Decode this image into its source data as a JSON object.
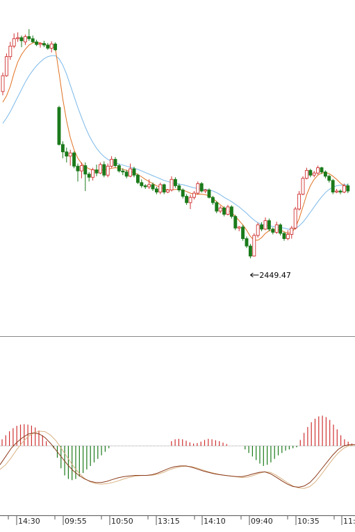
{
  "chart_data": [
    {
      "type": "candlestick",
      "title": "",
      "annotations": [
        {
          "label": "2449.47",
          "value": 2449.47
        }
      ],
      "colors": {
        "up": "#d03030",
        "down": "#1a7a1a",
        "ma_fast": "#e07020",
        "ma_slow": "#7ab8e8"
      },
      "series": [
        {
          "kind": "ohlc",
          "values": [
            [
              2481.0,
              2484.6,
              2480.3,
              2484.0
            ],
            [
              2484.0,
              2488.2,
              2483.8,
              2487.6
            ],
            [
              2487.6,
              2490.4,
              2487.0,
              2489.6
            ],
            [
              2489.6,
              2492.0,
              2489.2,
              2491.0
            ],
            [
              2491.0,
              2492.2,
              2490.4,
              2491.2
            ],
            [
              2491.2,
              2491.6,
              2489.4,
              2490.6
            ],
            [
              2490.4,
              2491.8,
              2489.8,
              2491.4
            ],
            [
              2491.4,
              2492.8,
              2490.6,
              2491.0
            ],
            [
              2491.0,
              2491.6,
              2490.2,
              2490.4
            ],
            [
              2490.4,
              2490.8,
              2489.6,
              2489.9
            ],
            [
              2489.9,
              2490.3,
              2489.3,
              2490.1
            ],
            [
              2490.1,
              2490.6,
              2489.4,
              2489.8
            ],
            [
              2489.8,
              2490.2,
              2488.9,
              2489.2
            ],
            [
              2489.2,
              2490.5,
              2488.4,
              2490.0
            ],
            [
              2490.0,
              2490.3,
              2488.7,
              2488.9
            ],
            [
              2478.0,
              2478.3,
              2470.8,
              2471.0
            ],
            [
              2471.0,
              2471.6,
              2468.4,
              2469.6
            ],
            [
              2469.6,
              2470.4,
              2467.6,
              2468.8
            ],
            [
              2468.8,
              2470.0,
              2467.0,
              2469.4
            ],
            [
              2469.4,
              2469.7,
              2466.5,
              2466.9
            ],
            [
              2466.9,
              2467.4,
              2464.0,
              2466.0
            ],
            [
              2466.0,
              2467.6,
              2464.6,
              2467.0
            ],
            [
              2467.0,
              2467.6,
              2462.2,
              2465.4
            ],
            [
              2465.4,
              2465.8,
              2464.0,
              2464.8
            ],
            [
              2464.8,
              2466.6,
              2464.2,
              2466.2
            ],
            [
              2466.2,
              2467.2,
              2465.0,
              2465.6
            ],
            [
              2465.6,
              2467.6,
              2465.4,
              2467.2
            ],
            [
              2467.2,
              2467.8,
              2464.8,
              2465.2
            ],
            [
              2465.2,
              2467.4,
              2464.8,
              2466.9
            ],
            [
              2466.9,
              2468.8,
              2466.6,
              2468.2
            ],
            [
              2468.2,
              2468.6,
              2466.7,
              2467.0
            ],
            [
              2467.0,
              2467.3,
              2465.7,
              2466.0
            ],
            [
              2466.0,
              2466.5,
              2465.2,
              2465.8
            ],
            [
              2465.8,
              2466.2,
              2464.6,
              2465.0
            ],
            [
              2465.0,
              2467.4,
              2464.8,
              2466.4
            ],
            [
              2466.4,
              2466.8,
              2464.8,
              2465.2
            ],
            [
              2465.2,
              2465.5,
              2463.5,
              2463.8
            ],
            [
              2463.8,
              2464.4,
              2462.8,
              2463.2
            ],
            [
              2463.2,
              2463.5,
              2462.6,
              2463.0
            ],
            [
              2463.0,
              2464.4,
              2462.6,
              2463.4
            ],
            [
              2463.4,
              2463.8,
              2462.2,
              2462.6
            ],
            [
              2462.6,
              2463.0,
              2461.6,
              2462.0
            ],
            [
              2462.0,
              2463.8,
              2461.6,
              2463.4
            ],
            [
              2463.4,
              2463.6,
              2461.6,
              2462.0
            ],
            [
              2462.0,
              2462.6,
              2461.8,
              2462.4
            ],
            [
              2462.4,
              2465.0,
              2462.1,
              2464.4
            ],
            [
              2464.4,
              2464.8,
              2462.8,
              2463.2
            ],
            [
              2463.2,
              2463.6,
              2462.0,
              2462.4
            ],
            [
              2462.4,
              2462.7,
              2460.8,
              2461.2
            ],
            [
              2461.2,
              2461.6,
              2459.6,
              2460.0
            ],
            [
              2460.0,
              2461.5,
              2458.8,
              2461.0
            ],
            [
              2461.0,
              2462.2,
              2460.6,
              2461.8
            ],
            [
              2461.8,
              2464.0,
              2461.5,
              2463.6
            ],
            [
              2463.6,
              2463.9,
              2461.9,
              2462.2
            ],
            [
              2462.2,
              2462.6,
              2461.8,
              2462.4
            ],
            [
              2462.4,
              2462.7,
              2460.8,
              2461.0
            ],
            [
              2461.0,
              2461.3,
              2459.6,
              2460.0
            ],
            [
              2460.0,
              2460.3,
              2458.0,
              2458.4
            ],
            [
              2458.4,
              2459.4,
              2458.0,
              2459.0
            ],
            [
              2459.0,
              2459.3,
              2457.4,
              2457.8
            ],
            [
              2457.8,
              2459.6,
              2457.6,
              2459.2
            ],
            [
              2459.2,
              2459.5,
              2457.0,
              2457.4
            ],
            [
              2457.4,
              2457.7,
              2454.8,
              2455.2
            ],
            [
              2455.2,
              2455.6,
              2454.6,
              2455.4
            ],
            [
              2455.4,
              2455.8,
              2452.8,
              2453.2
            ],
            [
              2453.2,
              2453.6,
              2451.4,
              2451.8
            ],
            [
              2451.8,
              2452.2,
              2449.47,
              2449.9
            ],
            [
              2449.9,
              2454.2,
              2449.8,
              2453.8
            ],
            [
              2453.8,
              2456.2,
              2453.4,
              2455.8
            ],
            [
              2455.8,
              2456.3,
              2454.6,
              2455.0
            ],
            [
              2455.0,
              2457.2,
              2454.8,
              2456.6
            ],
            [
              2456.6,
              2457.0,
              2454.6,
              2455.0
            ],
            [
              2455.0,
              2455.3,
              2454.0,
              2454.4
            ],
            [
              2454.4,
              2456.4,
              2454.1,
              2455.8
            ],
            [
              2455.8,
              2456.1,
              2453.8,
              2454.2
            ],
            [
              2454.2,
              2454.5,
              2452.8,
              2453.2
            ],
            [
              2453.2,
              2454.8,
              2452.9,
              2454.0
            ],
            [
              2454.0,
              2455.6,
              2453.2,
              2455.2
            ],
            [
              2455.2,
              2459.2,
              2454.9,
              2458.8
            ],
            [
              2458.8,
              2462.2,
              2458.5,
              2461.6
            ],
            [
              2461.6,
              2465.0,
              2461.4,
              2464.6
            ],
            [
              2464.6,
              2466.6,
              2464.4,
              2466.1
            ],
            [
              2466.1,
              2466.4,
              2464.8,
              2465.2
            ],
            [
              2465.2,
              2466.0,
              2464.8,
              2465.6
            ],
            [
              2465.6,
              2467.0,
              2465.3,
              2466.6
            ],
            [
              2466.6,
              2466.8,
              2465.4,
              2465.8
            ],
            [
              2465.8,
              2466.1,
              2464.6,
              2465.0
            ],
            [
              2465.0,
              2465.3,
              2463.8,
              2464.2
            ],
            [
              2464.2,
              2464.5,
              2461.6,
              2462.0
            ],
            [
              2462.0,
              2462.6,
              2461.8,
              2462.2
            ],
            [
              2462.2,
              2462.5,
              2461.6,
              2462.0
            ],
            [
              2462.0,
              2463.6,
              2461.8,
              2463.2
            ],
            [
              2463.2,
              2463.6,
              2461.8,
              2462.2
            ]
          ]
        },
        {
          "kind": "ma",
          "name": "",
          "values": [
            2479.0,
            2480.2,
            2482.0,
            2484.5,
            2486.6,
            2488.0,
            2489.0,
            2489.8,
            2490.2,
            2490.3,
            2490.2,
            2490.0,
            2489.7,
            2489.5,
            2489.2,
            2484.5,
            2479.6,
            2475.5,
            2472.3,
            2470.0,
            2468.4,
            2467.4,
            2466.8,
            2466.4,
            2466.2,
            2466.1,
            2466.2,
            2466.2,
            2466.3,
            2466.5,
            2466.6,
            2466.5,
            2466.3,
            2466.1,
            2465.9,
            2465.7,
            2465.3,
            2464.9,
            2464.4,
            2464.0,
            2463.6,
            2463.2,
            2462.9,
            2462.6,
            2462.4,
            2462.4,
            2462.5,
            2462.5,
            2462.4,
            2462.1,
            2461.8,
            2461.6,
            2461.6,
            2461.6,
            2461.5,
            2461.3,
            2460.8,
            2460.2,
            2459.6,
            2459.0,
            2458.6,
            2458.1,
            2457.4,
            2456.6,
            2455.8,
            2454.8,
            2453.6,
            2452.9,
            2452.9,
            2453.4,
            2454.2,
            2454.7,
            2454.8,
            2454.9,
            2454.8,
            2454.5,
            2454.2,
            2454.3,
            2455.3,
            2457.0,
            2459.2,
            2461.5,
            2463.2,
            2464.4,
            2465.2,
            2465.6,
            2465.7,
            2465.5,
            2465.0,
            2464.4,
            2463.7,
            2463.2,
            2462.9
          ]
        },
        {
          "kind": "ma",
          "name": "",
          "values": [
            2475.0,
            2476.0,
            2477.2,
            2478.6,
            2480.0,
            2481.4,
            2482.8,
            2484.0,
            2485.0,
            2485.9,
            2486.6,
            2487.2,
            2487.6,
            2487.8,
            2487.8,
            2487.2,
            2486.0,
            2484.3,
            2482.2,
            2480.1,
            2478.0,
            2476.1,
            2474.3,
            2472.7,
            2471.4,
            2470.3,
            2469.4,
            2468.7,
            2468.2,
            2467.8,
            2467.5,
            2467.3,
            2467.1,
            2466.9,
            2466.7,
            2466.5,
            2466.3,
            2466.0,
            2465.7,
            2465.4,
            2465.1,
            2464.8,
            2464.5,
            2464.2,
            2464.0,
            2463.8,
            2463.6,
            2463.5,
            2463.4,
            2463.2,
            2463.0,
            2462.8,
            2462.7,
            2462.6,
            2462.5,
            2462.4,
            2462.2,
            2461.9,
            2461.5,
            2461.0,
            2460.6,
            2460.2,
            2459.7,
            2459.2,
            2458.6,
            2458.0,
            2457.3,
            2456.7,
            2456.2,
            2455.9,
            2455.7,
            2455.6,
            2455.5,
            2455.4,
            2455.3,
            2455.2,
            2455.0,
            2454.9,
            2455.1,
            2455.6,
            2456.3,
            2457.2,
            2458.2,
            2459.2,
            2460.2,
            2461.1,
            2461.9,
            2462.5,
            2462.9,
            2463.2,
            2463.3,
            2463.4,
            2463.4
          ]
        }
      ],
      "x_ticks": [
        "14:30",
        "09:55",
        "10:50",
        "13:15",
        "14:10",
        "09:40",
        "10:35",
        "11:"
      ]
    },
    {
      "type": "bar",
      "title": "",
      "colors": {
        "positive": "#d03030",
        "negative": "#1a7a1a",
        "dif": "#8b3a1a",
        "dea": "#d8b080"
      },
      "series": [
        {
          "kind": "histogram",
          "values": [
            0.28,
            0.45,
            0.62,
            0.75,
            0.85,
            0.9,
            0.92,
            0.9,
            0.86,
            0.78,
            0.65,
            0.45,
            0.2,
            0,
            -0.1,
            -0.5,
            -0.95,
            -1.25,
            -1.4,
            -1.45,
            -1.4,
            -1.3,
            -1.15,
            -1.0,
            -0.85,
            -0.7,
            -0.55,
            -0.4,
            -0.25,
            -0.1,
            0,
            0,
            0,
            0,
            0,
            0,
            0,
            0,
            0,
            0,
            0,
            0,
            0,
            0,
            0,
            0,
            0.2,
            0.28,
            0.3,
            0.28,
            0.22,
            0.15,
            0.1,
            0.12,
            0.18,
            0.25,
            0.3,
            0.28,
            0.24,
            0.2,
            0.14,
            0.08,
            0,
            0,
            0,
            0,
            -0.15,
            -0.3,
            -0.45,
            -0.6,
            -0.75,
            -0.85,
            -0.8,
            -0.7,
            -0.55,
            -0.4,
            -0.3,
            -0.2,
            -0.15,
            -0.1,
            -0.06,
            0.25,
            0.55,
            0.8,
            1.0,
            1.15,
            1.25,
            1.28,
            1.22,
            1.1,
            0.9,
            0.7,
            0.45,
            0.28,
            0.18,
            0.1
          ]
        },
        {
          "kind": "line",
          "name": "",
          "values": [
            -0.8,
            -0.45,
            -0.1,
            0.15,
            0.35,
            0.5,
            0.55,
            0.5,
            0.35,
            0.1,
            -0.2,
            -0.5,
            -0.8,
            -1.05,
            -1.25,
            -1.4,
            -1.5,
            -1.55,
            -1.55,
            -1.5,
            -1.42,
            -1.35,
            -1.3,
            -1.27,
            -1.25,
            -1.25,
            -1.25,
            -1.22,
            -1.15,
            -1.05,
            -0.95,
            -0.88,
            -0.85,
            -0.85,
            -0.9,
            -0.98,
            -1.06,
            -1.12,
            -1.18,
            -1.22,
            -1.25,
            -1.28,
            -1.3,
            -1.3,
            -1.25,
            -1.18,
            -1.12,
            -1.1,
            -1.18,
            -1.32,
            -1.48,
            -1.62,
            -1.72,
            -1.75,
            -1.7,
            -1.55,
            -1.3,
            -1.0,
            -0.7,
            -0.4,
            -0.15,
            0.0,
            0.05,
            0.05
          ]
        },
        {
          "kind": "line",
          "name": "",
          "values": [
            -1.0,
            -0.8,
            -0.5,
            -0.15,
            0.15,
            0.4,
            0.55,
            0.62,
            0.6,
            0.45,
            0.2,
            -0.15,
            -0.5,
            -0.85,
            -1.15,
            -1.38,
            -1.52,
            -1.6,
            -1.62,
            -1.6,
            -1.55,
            -1.48,
            -1.4,
            -1.33,
            -1.28,
            -1.26,
            -1.25,
            -1.24,
            -1.2,
            -1.12,
            -1.02,
            -0.94,
            -0.88,
            -0.86,
            -0.88,
            -0.94,
            -1.02,
            -1.1,
            -1.16,
            -1.21,
            -1.25,
            -1.28,
            -1.31,
            -1.34,
            -1.32,
            -1.25,
            -1.16,
            -1.1,
            -1.12,
            -1.24,
            -1.4,
            -1.56,
            -1.7,
            -1.78,
            -1.8,
            -1.72,
            -1.52,
            -1.22,
            -0.9,
            -0.58,
            -0.3,
            -0.1,
            0.02,
            0.05
          ]
        }
      ]
    }
  ]
}
